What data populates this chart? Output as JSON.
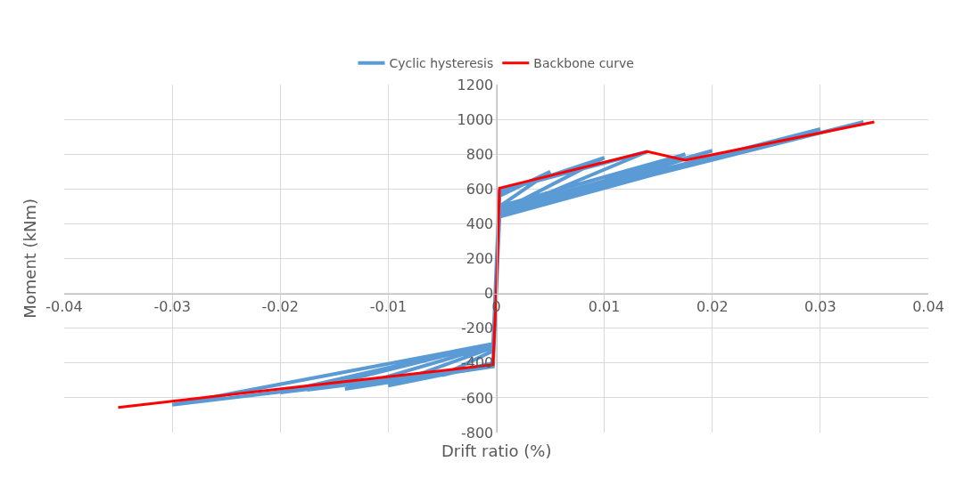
{
  "chart_data": {
    "type": "line",
    "xlabel": "Drift ratio (%)",
    "ylabel": "Moment (kNm)",
    "xlim": [
      -0.04,
      0.04
    ],
    "xticks": [
      -0.04,
      -0.03,
      -0.02,
      -0.01,
      0,
      0.01,
      0.02,
      0.03,
      0.04
    ],
    "ylim": [
      -800,
      1200
    ],
    "yticks": [
      -800,
      -600,
      -400,
      -200,
      0,
      200,
      400,
      600,
      800,
      1000,
      1200
    ],
    "grid": true,
    "legend": "top",
    "marker": "none",
    "line_style": "solid",
    "series": [
      {
        "name": "Cyclic hysteresis",
        "color": "#5b9bd5",
        "x": [
          0,
          0.0003,
          0.005,
          0.0003,
          -0.0003,
          -0.005,
          -0.0003,
          0.0003,
          0.01,
          0.0003,
          -0.0003,
          -0.01,
          -0.0003,
          0.0003,
          0.014,
          0.0003,
          -0.0003,
          -0.014,
          -0.0003,
          0.0003,
          0.0175,
          0.0003,
          -0.0003,
          -0.0175,
          -0.0003,
          0.0003,
          0.02,
          0.0003,
          -0.0003,
          -0.02,
          -0.0003,
          0.0003,
          0.03,
          0.0003,
          -0.0003,
          -0.03,
          -0.0003,
          0.0003,
          0.034
        ],
        "values": [
          0,
          560,
          700,
          500,
          -400,
          -470,
          -330,
          580,
          780,
          470,
          -410,
          -530,
          -310,
          590,
          815,
          460,
          -420,
          -550,
          -300,
          500,
          800,
          450,
          -420,
          -555,
          -290,
          480,
          820,
          440,
          -420,
          -570,
          -290,
          470,
          945,
          440,
          -420,
          -640,
          -290,
          460,
          985
        ]
      },
      {
        "name": "Backbone curve",
        "color": "#ff0000",
        "x": [
          -0.035,
          -0.0003,
          0,
          0.0003,
          0.014,
          0.0175,
          0.035
        ],
        "values": [
          -655,
          -410,
          0,
          605,
          815,
          765,
          985
        ]
      }
    ]
  }
}
